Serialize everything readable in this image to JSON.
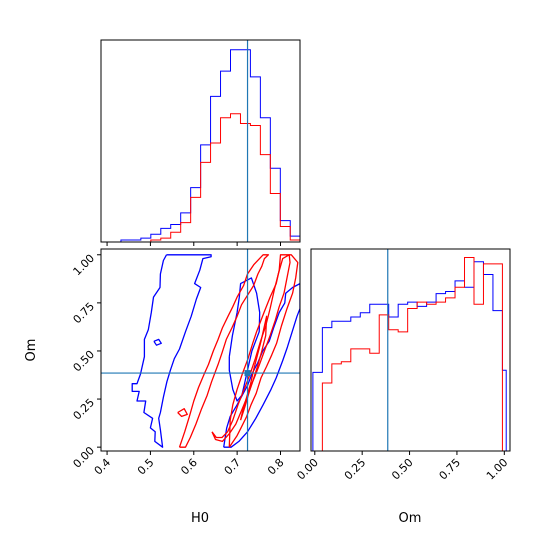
{
  "chart_data": {
    "type": "corner",
    "params": [
      "H0",
      "Om"
    ],
    "truth": {
      "H0": 0.724,
      "Om": 0.385
    },
    "colors": {
      "series_1": "#0000ff",
      "series_2": "#ff0000",
      "truth": "#1f77b4"
    },
    "grid": false,
    "legend": "none",
    "axes": {
      "H0": {
        "label": "H0",
        "lim": [
          0.386,
          0.845
        ],
        "ticks": [
          "0.4",
          "0.5",
          "0.6",
          "0.7",
          "0.8"
        ],
        "tick_values": [
          0.4,
          0.5,
          0.6,
          0.7,
          0.8
        ]
      },
      "Om": {
        "label": "Om",
        "lim": [
          -0.02,
          1.03
        ],
        "ticks": [
          "0.00",
          "0.25",
          "0.50",
          "0.75",
          "1.00"
        ],
        "tick_values": [
          0.0,
          0.25,
          0.5,
          0.75,
          1.0
        ]
      }
    },
    "h0_histogram": {
      "edges": [
        0.386,
        0.409,
        0.432,
        0.4549,
        0.4779,
        0.5009,
        0.5239,
        0.5468,
        0.5698,
        0.5928,
        0.6158,
        0.6387,
        0.6617,
        0.6847,
        0.7077,
        0.7306,
        0.7536,
        0.7766,
        0.7996,
        0.8225,
        0.8455
      ],
      "series": [
        {
          "color": "#0000ff",
          "values": [
            0,
            0,
            1,
            1,
            2,
            4,
            7,
            9,
            15,
            28,
            50,
            75,
            88,
            99,
            99,
            85,
            64,
            38,
            11,
            3
          ]
        },
        {
          "color": "#ff0000",
          "values": [
            0,
            0,
            0,
            0,
            0,
            1,
            2,
            5,
            10,
            23,
            41,
            51,
            64,
            66,
            61,
            60,
            45,
            25,
            8,
            1
          ]
        }
      ]
    },
    "om_histogram": {
      "edges": [
        -0.01,
        0.04,
        0.09,
        0.14,
        0.19,
        0.24,
        0.29,
        0.34,
        0.39,
        0.44,
        0.49,
        0.54,
        0.59,
        0.64,
        0.69,
        0.74,
        0.79,
        0.84,
        0.89,
        0.94,
        0.99,
        1.01
      ],
      "series": [
        {
          "color": "#0000ff",
          "values": [
            37,
            58,
            61,
            61,
            63,
            65,
            69,
            69,
            63,
            69,
            70,
            68,
            70,
            74,
            75,
            80,
            77,
            89,
            83,
            66,
            38
          ]
        },
        {
          "color": "#ff0000",
          "values": [
            0,
            32,
            41,
            42,
            48,
            48,
            46,
            64,
            57,
            56,
            67,
            70,
            69,
            70,
            72,
            77,
            91,
            69,
            88,
            88,
            0
          ]
        }
      ]
    },
    "contours_2d": [
      {
        "color": "#0000ff",
        "paths": [
          [
            [
              0.537,
              1.0
            ],
            [
              0.64,
              1.0
            ],
            [
              0.64,
              0.99
            ],
            [
              0.621,
              0.98
            ],
            [
              0.614,
              0.92
            ],
            [
              0.602,
              0.85
            ],
            [
              0.616,
              0.83
            ],
            [
              0.606,
              0.77
            ],
            [
              0.594,
              0.68
            ],
            [
              0.581,
              0.6
            ],
            [
              0.567,
              0.51
            ],
            [
              0.555,
              0.46
            ],
            [
              0.546,
              0.4
            ],
            [
              0.538,
              0.34
            ],
            [
              0.53,
              0.26
            ],
            [
              0.523,
              0.18
            ],
            [
              0.519,
              0.15
            ],
            [
              0.523,
              0.09
            ],
            [
              0.528,
              0.0
            ],
            [
              0.51,
              0.03
            ],
            [
              0.511,
              0.08
            ],
            [
              0.5,
              0.1
            ],
            [
              0.505,
              0.15
            ],
            [
              0.485,
              0.18
            ],
            [
              0.489,
              0.24
            ],
            [
              0.469,
              0.24
            ],
            [
              0.474,
              0.29
            ],
            [
              0.458,
              0.29
            ],
            [
              0.458,
              0.33
            ],
            [
              0.469,
              0.33
            ],
            [
              0.477,
              0.38
            ],
            [
              0.486,
              0.47
            ],
            [
              0.486,
              0.56
            ],
            [
              0.495,
              0.61
            ],
            [
              0.502,
              0.7
            ],
            [
              0.507,
              0.78
            ],
            [
              0.522,
              0.83
            ],
            [
              0.523,
              0.9
            ],
            [
              0.53,
              0.97
            ],
            [
              0.537,
              1.0
            ]
          ],
          [
            [
              0.508,
              0.55
            ],
            [
              0.514,
              0.53
            ],
            [
              0.525,
              0.54
            ],
            [
              0.519,
              0.56
            ],
            [
              0.508,
              0.55
            ]
          ],
          [
            [
              0.669,
              0.0
            ],
            [
              0.686,
              0.0
            ],
            [
              0.704,
              0.03
            ],
            [
              0.724,
              0.08
            ],
            [
              0.743,
              0.15
            ],
            [
              0.76,
              0.22
            ],
            [
              0.778,
              0.3
            ],
            [
              0.79,
              0.36
            ],
            [
              0.805,
              0.45
            ],
            [
              0.816,
              0.52
            ],
            [
              0.827,
              0.6
            ],
            [
              0.838,
              0.68
            ],
            [
              0.845,
              0.72
            ],
            [
              0.845,
              0.85
            ],
            [
              0.828,
              0.83
            ],
            [
              0.812,
              0.8
            ],
            [
              0.81,
              0.75
            ],
            [
              0.797,
              0.7
            ],
            [
              0.784,
              0.62
            ],
            [
              0.774,
              0.55
            ],
            [
              0.759,
              0.5
            ],
            [
              0.748,
              0.44
            ],
            [
              0.734,
              0.38
            ],
            [
              0.724,
              0.32
            ],
            [
              0.712,
              0.27
            ],
            [
              0.7,
              0.22
            ],
            [
              0.684,
              0.16
            ],
            [
              0.676,
              0.1
            ],
            [
              0.669,
              0.0
            ]
          ],
          [
            [
              0.682,
              0.47
            ],
            [
              0.689,
              0.58
            ],
            [
              0.7,
              0.7
            ],
            [
              0.705,
              0.78
            ],
            [
              0.708,
              0.85
            ],
            [
              0.733,
              0.88
            ],
            [
              0.745,
              0.8
            ],
            [
              0.752,
              0.7
            ],
            [
              0.751,
              0.6
            ],
            [
              0.734,
              0.5
            ],
            [
              0.724,
              0.4
            ],
            [
              0.716,
              0.32
            ],
            [
              0.711,
              0.27
            ],
            [
              0.7,
              0.24
            ],
            [
              0.69,
              0.3
            ],
            [
              0.682,
              0.4
            ],
            [
              0.682,
              0.47
            ]
          ]
        ]
      },
      {
        "color": "#ff0000",
        "paths": [
          [
            [
              0.567,
              0.0
            ],
            [
              0.581,
              0.0
            ],
            [
              0.592,
              0.05
            ],
            [
              0.605,
              0.12
            ],
            [
              0.618,
              0.2
            ],
            [
              0.631,
              0.27
            ],
            [
              0.641,
              0.34
            ],
            [
              0.656,
              0.43
            ],
            [
              0.665,
              0.49
            ],
            [
              0.675,
              0.56
            ],
            [
              0.688,
              0.62
            ],
            [
              0.7,
              0.68
            ],
            [
              0.71,
              0.74
            ],
            [
              0.727,
              0.8
            ],
            [
              0.738,
              0.84
            ],
            [
              0.748,
              0.9
            ],
            [
              0.757,
              0.94
            ],
            [
              0.763,
              0.98
            ],
            [
              0.772,
              1.0
            ],
            [
              0.76,
              1.0
            ],
            [
              0.739,
              0.95
            ],
            [
              0.724,
              0.9
            ],
            [
              0.715,
              0.84
            ],
            [
              0.7,
              0.78
            ],
            [
              0.69,
              0.73
            ],
            [
              0.679,
              0.68
            ],
            [
              0.666,
              0.62
            ],
            [
              0.656,
              0.56
            ],
            [
              0.645,
              0.5
            ],
            [
              0.634,
              0.43
            ],
            [
              0.624,
              0.38
            ],
            [
              0.611,
              0.31
            ],
            [
              0.6,
              0.24
            ],
            [
              0.59,
              0.16
            ],
            [
              0.579,
              0.08
            ],
            [
              0.567,
              0.0
            ]
          ],
          [
            [
              0.563,
              0.18
            ],
            [
              0.572,
              0.16
            ],
            [
              0.585,
              0.17
            ],
            [
              0.578,
              0.2
            ],
            [
              0.563,
              0.18
            ]
          ],
          [
            [
              0.682,
              0.0
            ],
            [
              0.7,
              0.06
            ],
            [
              0.709,
              0.1
            ],
            [
              0.722,
              0.16
            ],
            [
              0.732,
              0.22
            ],
            [
              0.744,
              0.28
            ],
            [
              0.755,
              0.36
            ],
            [
              0.768,
              0.42
            ],
            [
              0.78,
              0.48
            ],
            [
              0.791,
              0.54
            ],
            [
              0.802,
              0.63
            ],
            [
              0.815,
              0.72
            ],
            [
              0.828,
              0.8
            ],
            [
              0.835,
              0.88
            ],
            [
              0.84,
              0.96
            ],
            [
              0.825,
              1.0
            ],
            [
              0.8,
              1.0
            ],
            [
              0.797,
              0.92
            ],
            [
              0.79,
              0.85
            ],
            [
              0.776,
              0.78
            ],
            [
              0.762,
              0.7
            ],
            [
              0.745,
              0.6
            ],
            [
              0.736,
              0.54
            ],
            [
              0.725,
              0.46
            ],
            [
              0.712,
              0.38
            ],
            [
              0.7,
              0.3
            ],
            [
              0.69,
              0.22
            ],
            [
              0.684,
              0.14
            ],
            [
              0.682,
              0.0
            ]
          ],
          [
            [
              0.642,
              0.08
            ],
            [
              0.652,
              0.05
            ],
            [
              0.665,
              0.05
            ],
            [
              0.678,
              0.08
            ],
            [
              0.69,
              0.14
            ],
            [
              0.702,
              0.22
            ],
            [
              0.716,
              0.3
            ],
            [
              0.73,
              0.38
            ],
            [
              0.742,
              0.46
            ],
            [
              0.754,
              0.55
            ],
            [
              0.766,
              0.63
            ],
            [
              0.776,
              0.72
            ],
            [
              0.786,
              0.82
            ],
            [
              0.795,
              0.9
            ],
            [
              0.805,
              0.98
            ],
            [
              0.82,
              1.0
            ],
            [
              0.822,
              0.96
            ],
            [
              0.815,
              0.88
            ],
            [
              0.808,
              0.8
            ],
            [
              0.797,
              0.73
            ],
            [
              0.788,
              0.66
            ],
            [
              0.776,
              0.58
            ],
            [
              0.763,
              0.5
            ],
            [
              0.75,
              0.42
            ],
            [
              0.736,
              0.34
            ],
            [
              0.723,
              0.26
            ],
            [
              0.71,
              0.19
            ],
            [
              0.697,
              0.12
            ],
            [
              0.682,
              0.07
            ],
            [
              0.666,
              0.03
            ],
            [
              0.65,
              0.04
            ],
            [
              0.642,
              0.08
            ]
          ],
          [
            [
              0.708,
              0.14
            ],
            [
              0.714,
              0.2
            ],
            [
              0.722,
              0.26
            ],
            [
              0.731,
              0.33
            ],
            [
              0.739,
              0.41
            ],
            [
              0.747,
              0.48
            ],
            [
              0.755,
              0.55
            ],
            [
              0.762,
              0.62
            ],
            [
              0.768,
              0.68
            ],
            [
              0.766,
              0.58
            ],
            [
              0.757,
              0.5
            ],
            [
              0.747,
              0.42
            ],
            [
              0.737,
              0.35
            ],
            [
              0.727,
              0.28
            ],
            [
              0.718,
              0.21
            ],
            [
              0.708,
              0.14
            ]
          ]
        ]
      }
    ]
  }
}
